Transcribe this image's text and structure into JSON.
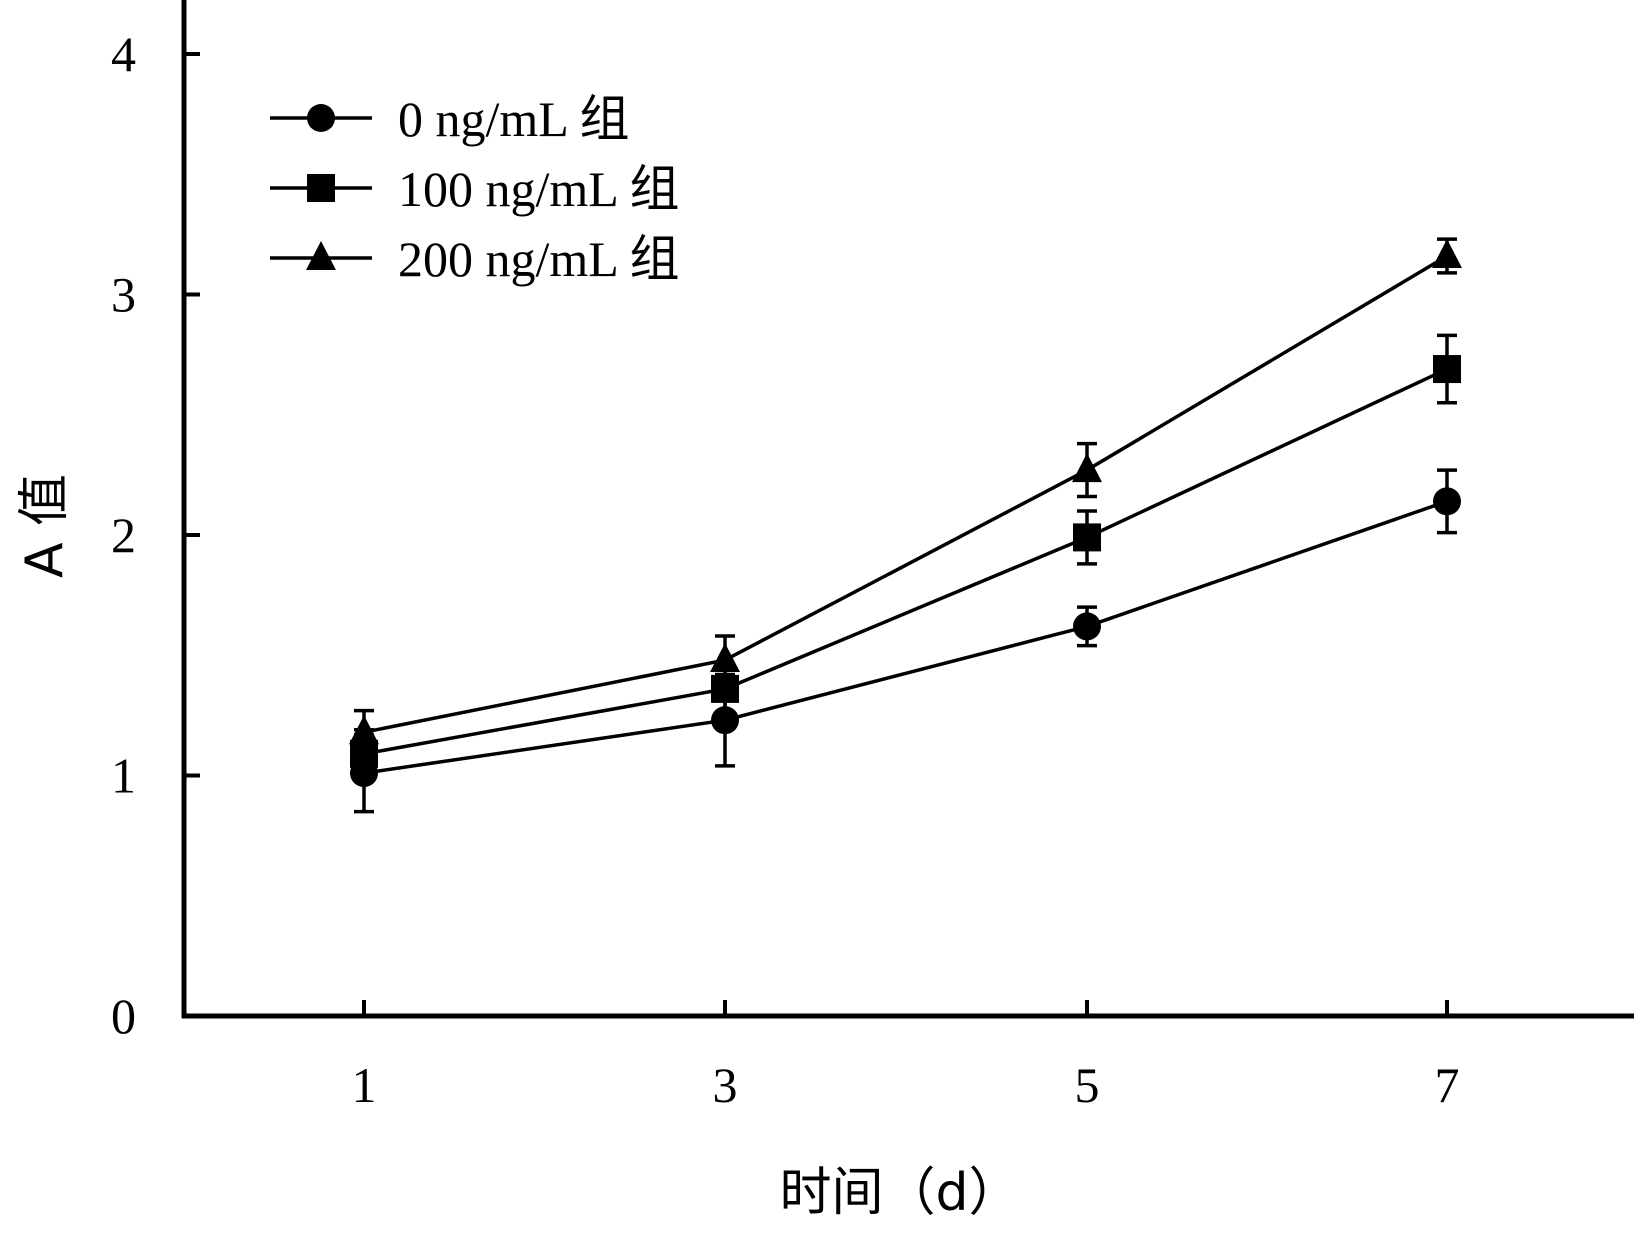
{
  "chart_data": {
    "type": "line",
    "xlabel": "时间（d）",
    "ylabel": "A 值",
    "x": [
      1,
      3,
      5,
      7
    ],
    "xticks": [
      "1",
      "3",
      "5",
      "7"
    ],
    "yticks": [
      "0",
      "1",
      "2",
      "3",
      "4"
    ],
    "ylim": [
      0,
      4
    ],
    "grid": false,
    "legend_position": "top-left",
    "series": [
      {
        "name": "0 ng/mL 组",
        "marker": "circle",
        "values": [
          1.01,
          1.23,
          1.62,
          2.14
        ],
        "errors": [
          0.16,
          0.19,
          0.08,
          0.13
        ]
      },
      {
        "name": "100 ng/mL 组",
        "marker": "square",
        "values": [
          1.09,
          1.36,
          1.99,
          2.69
        ],
        "errors": [
          0.1,
          0.1,
          0.11,
          0.14
        ]
      },
      {
        "name": "200 ng/mL 组",
        "marker": "triangle",
        "values": [
          1.18,
          1.48,
          2.27,
          3.16
        ],
        "errors": [
          0.09,
          0.1,
          0.11,
          0.07
        ]
      }
    ]
  }
}
